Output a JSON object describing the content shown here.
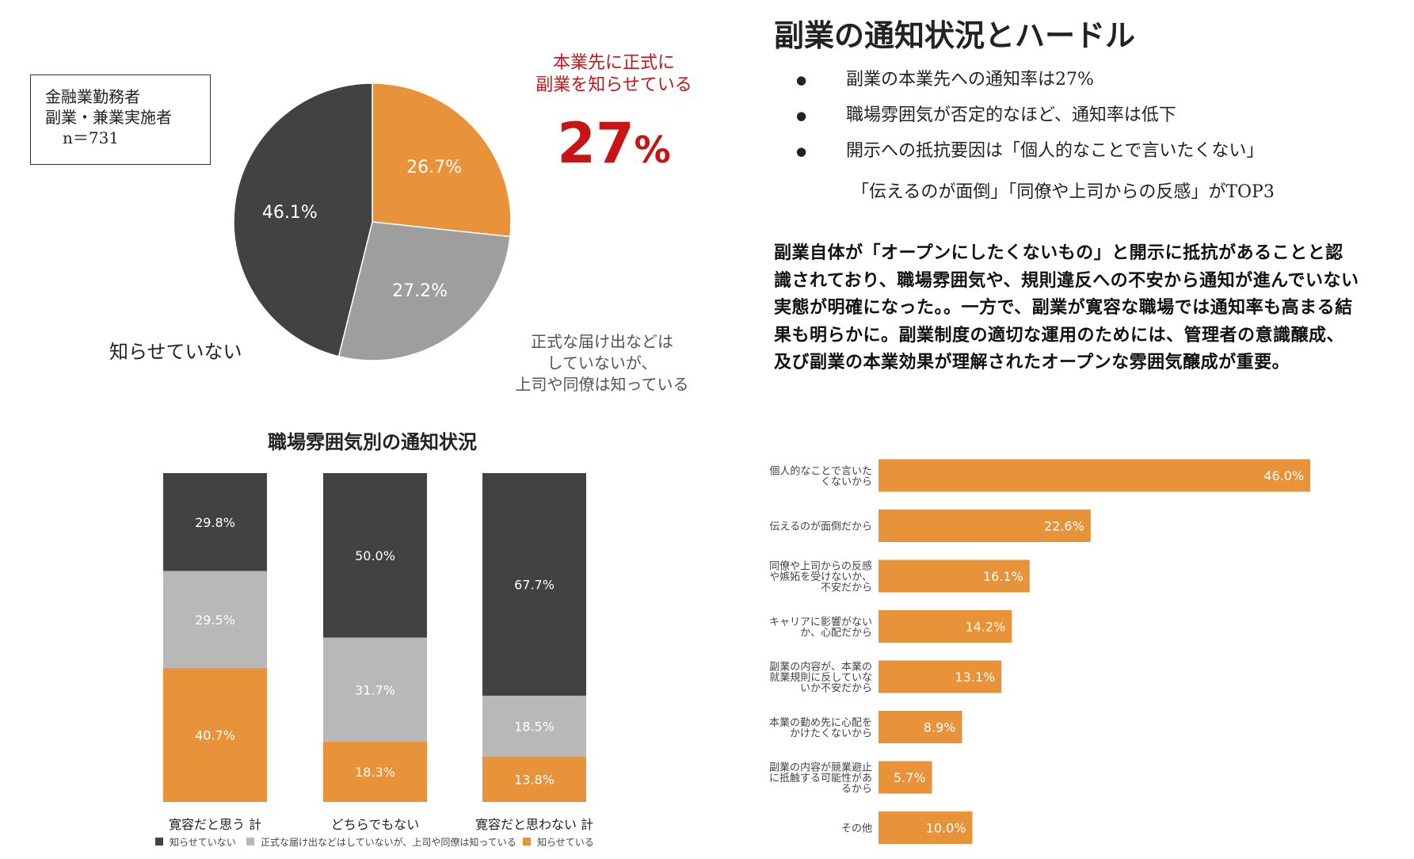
{
  "sample": {
    "line1": "金融業勤務者",
    "line2": "副業・兼業実施者",
    "line3": "n＝731"
  },
  "pie": {
    "highlight_label_1": "本業先に正式に",
    "highlight_label_2": "副業を知らせている",
    "highlight_value": "27",
    "highlight_unit": "%",
    "not_informed_label": "知らせていない",
    "informal_label_1": "正式な届け出などは",
    "informal_label_2": "していないが、",
    "informal_label_3": "上司や同僚は知っている"
  },
  "header": {
    "title": "副業の通知状況とハードル",
    "bullets": [
      "副業の本業先への通知率は27%",
      "職場雰囲気が否定的なほど、通知率は低下",
      "開示への抵抗要因は「個人的なことで言いたくない」"
    ],
    "bullet_continuation": "「伝えるのが面倒」「同僚や上司からの反感」がTOP3"
  },
  "summary": "副業自体が「オープンにしたくないもの」と開示に抵抗があることと認識されており、職場雰囲気や、規則違反への不安から通知が進んでいない実態が明確になった。。一方で、副業が寛容な職場では通知率も高まる結果も明らかに。副業制度の適切な運用のためには、管理者の意識醸成、及び副業の本業効果が理解されたオープンな雰囲気醸成が重要。",
  "colors": {
    "informed": "#e8923a",
    "informal": "#9e9e9e",
    "informal_stack": "#b8b8b8",
    "not_informed": "#424242",
    "highlight_red": "#c81414"
  },
  "chart_data": [
    {
      "type": "pie",
      "title": "",
      "slices": [
        {
          "label": "知らせている",
          "value": 26.7,
          "display": "26.7%"
        },
        {
          "label": "正式な届け出などはしていないが、上司や同僚は知っている",
          "value": 27.2,
          "display": "27.2%"
        },
        {
          "label": "知らせていない",
          "value": 46.1,
          "display": "46.1%"
        }
      ]
    },
    {
      "type": "bar",
      "stacked": true,
      "title": "職場雰囲気別の通知状況",
      "categories": [
        "寛容だと思う 計",
        "どちらでもない",
        "寛容だと思わない 計"
      ],
      "series": [
        {
          "name": "知らせていない",
          "values": [
            29.8,
            50.0,
            67.7
          ],
          "labels": [
            "29.8%",
            "50.0%",
            "67.7%"
          ]
        },
        {
          "name": "正式な届け出などはしていないが、上司や同僚は知っている",
          "values": [
            29.5,
            31.7,
            18.5
          ],
          "labels": [
            "29.5%",
            "31.7%",
            "18.5%"
          ]
        },
        {
          "name": "知らせている",
          "values": [
            40.7,
            18.3,
            13.8
          ],
          "labels": [
            "40.7%",
            "18.3%",
            "13.8%"
          ]
        }
      ],
      "legend": "bottom",
      "ylim": [
        0,
        100
      ]
    },
    {
      "type": "bar",
      "orientation": "horizontal",
      "title": "",
      "categories": [
        [
          "個人的なことで言いた",
          "くないから"
        ],
        [
          "伝えるのが面倒だから"
        ],
        [
          "同僚や上司からの反感",
          "や嫉妬を受けないか、",
          "不安だから"
        ],
        [
          "キャリアに影響がない",
          "か、心配だから"
        ],
        [
          "副業の内容が、本業の",
          "就業規則に反していな",
          "いか不安だから"
        ],
        [
          "本業の勤め先に心配を",
          "かけたくないから"
        ],
        [
          "副業の内容が競業避止",
          "に抵触する可能性があ",
          "るから"
        ],
        [
          "その他"
        ]
      ],
      "values": [
        46.0,
        22.6,
        16.1,
        14.2,
        13.1,
        8.9,
        5.7,
        10.0
      ],
      "labels": [
        "46.0%",
        "22.6%",
        "16.1%",
        "14.2%",
        "13.1%",
        "8.9%",
        "5.7%",
        "10.0%"
      ],
      "xlim": [
        0,
        100
      ]
    }
  ]
}
